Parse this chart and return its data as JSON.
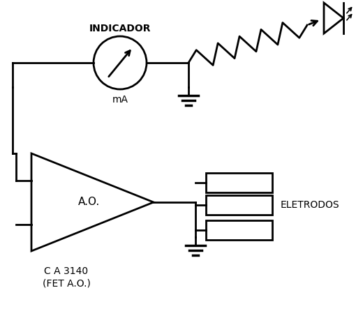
{
  "bg_color": "#ffffff",
  "line_color": "#000000",
  "indicador_label": "INDICADOR",
  "mA_label": "mA",
  "ao_label": "A.O.",
  "ca_label": "C A 3140",
  "fet_label": "(FET A.O.)",
  "eletrodos_label": "ELETRODOS",
  "lw": 2.0
}
